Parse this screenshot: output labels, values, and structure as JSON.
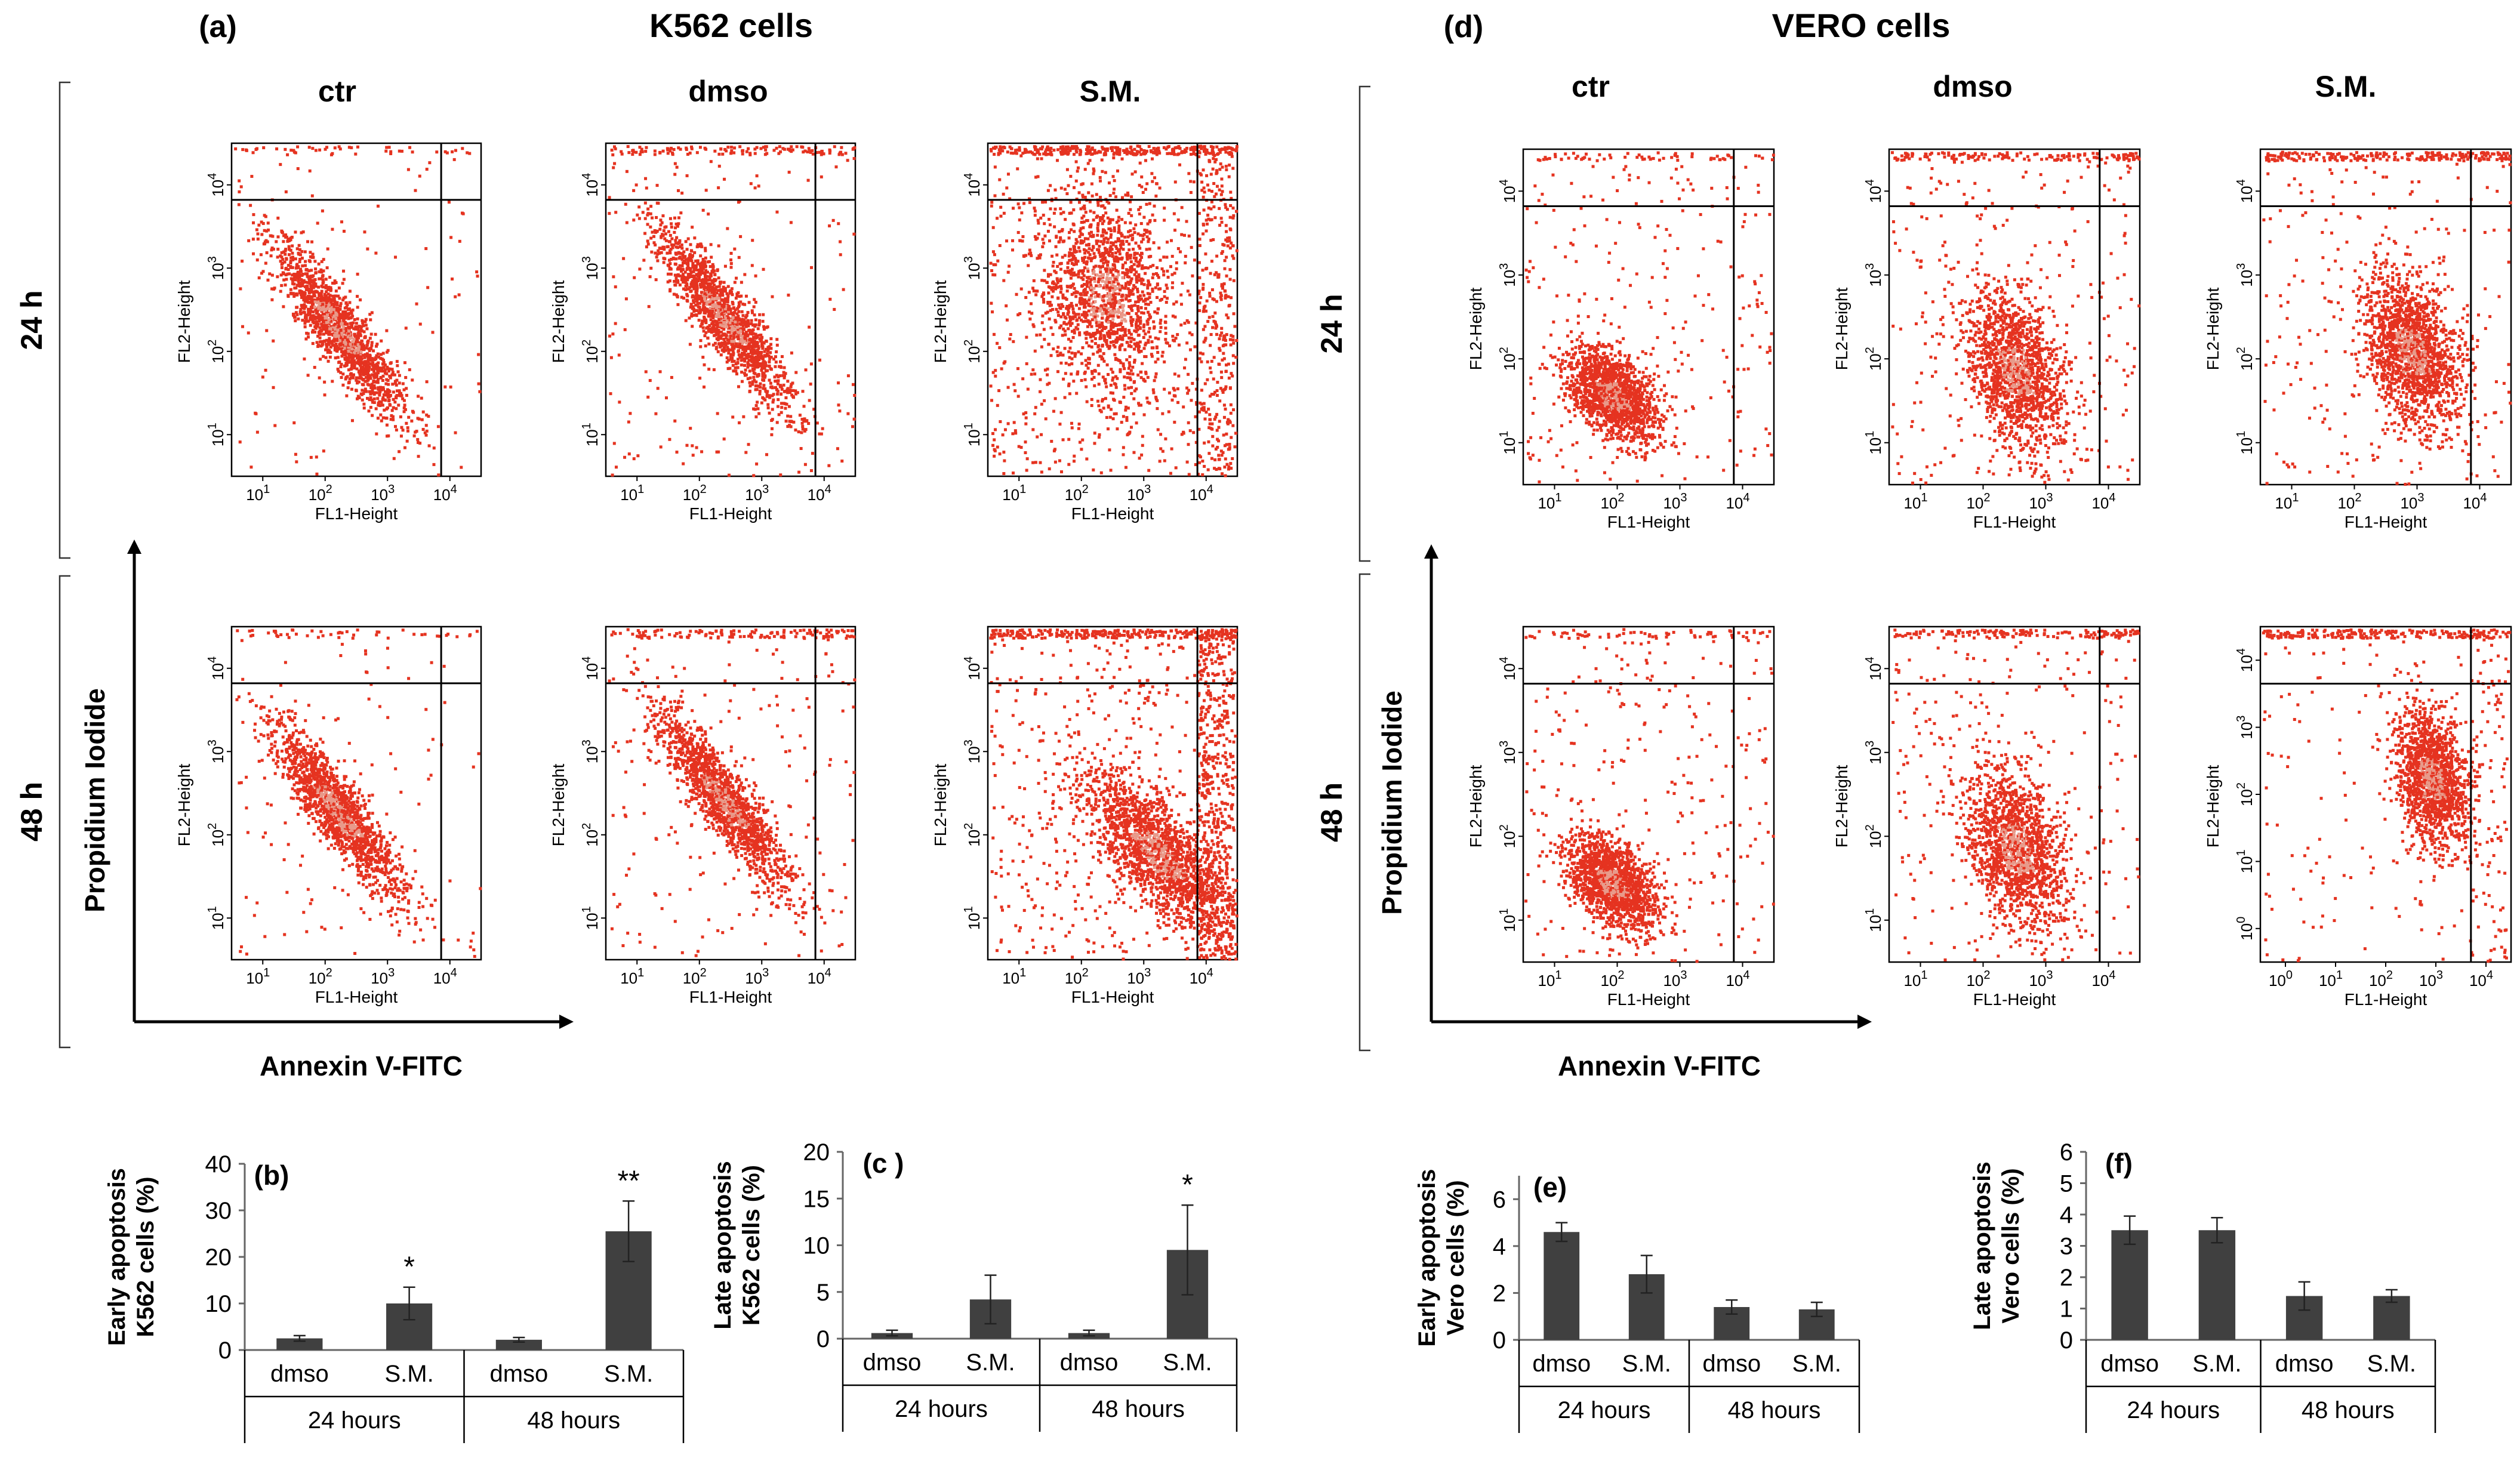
{
  "figure": {
    "panel_k562": {
      "letter": "(a)",
      "title": "K562 cells",
      "columns": [
        "ctr",
        "dmso",
        "S.M."
      ],
      "rows": [
        "24 h",
        "48 h"
      ],
      "y_axis_label": "Propidium Iodide",
      "x_axis_label": "Annexin V-FITC"
    },
    "panel_vero": {
      "letter": "(d)",
      "title": "VERO cells",
      "columns": [
        "ctr",
        "dmso",
        "S.M."
      ],
      "rows": [
        "24 h",
        "48 h"
      ],
      "y_axis_label": "Propidium Iodide",
      "x_axis_label": "Annexin V-FITC"
    },
    "scatter_axes": {
      "x_title": "FL1-Height",
      "y_title": "FL2-Height",
      "tick_base": "10",
      "tick_exponents": [
        "1",
        "2",
        "3",
        "4"
      ],
      "tick_exponents_with_zero": [
        "0",
        "1",
        "2",
        "3",
        "4"
      ]
    }
  },
  "colors": {
    "bar": "#404040",
    "dots": "#e53320",
    "dots_pale": "#e89a8a"
  },
  "chart_data": [
    {
      "id": "b",
      "type": "bar",
      "letter": "(b)",
      "ylabel_line1": "Early apoptosis",
      "ylabel_line2": "K562 cells (%)",
      "ylim": [
        0,
        40
      ],
      "yticks": [
        0,
        10,
        20,
        30,
        40
      ],
      "categories": [
        "dmso",
        "S.M.",
        "dmso",
        "S.M."
      ],
      "groups": [
        "24 hours",
        "48 hours"
      ],
      "values": [
        2.5,
        10,
        2.2,
        25.5
      ],
      "errors": [
        0.6,
        3.5,
        0.5,
        6.5
      ],
      "significance": [
        "",
        "*",
        "",
        "**"
      ]
    },
    {
      "id": "c",
      "type": "bar",
      "letter": "(c )",
      "ylabel_line1": "Late apoptosis",
      "ylabel_line2": "K562 cells (%)",
      "ylim": [
        0,
        20
      ],
      "yticks": [
        0,
        5,
        10,
        15,
        20
      ],
      "categories": [
        "dmso",
        "S.M.",
        "dmso",
        "S.M."
      ],
      "groups": [
        "24 hours",
        "48 hours"
      ],
      "values": [
        0.6,
        4.2,
        0.6,
        9.5
      ],
      "errors": [
        0.3,
        2.6,
        0.3,
        4.8
      ],
      "significance": [
        "",
        "",
        "",
        "*"
      ]
    },
    {
      "id": "e",
      "type": "bar",
      "letter": "(e)",
      "ylabel_line1": "Early apoptosis",
      "ylabel_line2": "Vero cells (%)",
      "ylim": [
        0,
        7
      ],
      "yticks": [
        0,
        2,
        4,
        6
      ],
      "categories": [
        "dmso",
        "S.M.",
        "dmso",
        "S.M."
      ],
      "groups": [
        "24 hours",
        "48 hours"
      ],
      "values": [
        4.6,
        2.8,
        1.4,
        1.3
      ],
      "errors": [
        0.4,
        0.8,
        0.3,
        0.3
      ],
      "significance": [
        "",
        "",
        "",
        ""
      ]
    },
    {
      "id": "f",
      "type": "bar",
      "letter": "(f)",
      "ylabel_line1": "Late apoptosis",
      "ylabel_line2": "Vero cells (%)",
      "ylim": [
        0,
        6
      ],
      "yticks": [
        0,
        1,
        2,
        3,
        4,
        5,
        6
      ],
      "categories": [
        "dmso",
        "S.M.",
        "dmso",
        "S.M."
      ],
      "groups": [
        "24 hours",
        "48 hours"
      ],
      "values": [
        3.5,
        3.5,
        1.4,
        1.4
      ],
      "errors": [
        0.45,
        0.4,
        0.45,
        0.2
      ],
      "significance": [
        "",
        "",
        "",
        ""
      ]
    }
  ]
}
